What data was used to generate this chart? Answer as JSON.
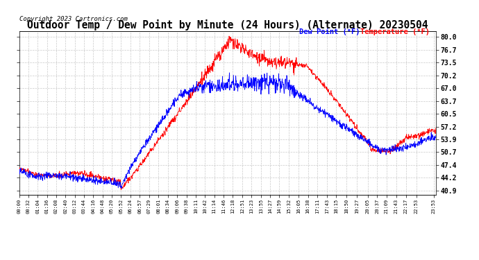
{
  "title": "Outdoor Temp / Dew Point by Minute (24 Hours) (Alternate) 20230504",
  "copyright": "Copyright 2023 Cartronics.com",
  "legend_dew": "Dew Point (°F)",
  "legend_temp": "Temperature (°F)",
  "dew_color": "#0000FF",
  "temp_color": "#FF0000",
  "background_color": "#FFFFFF",
  "grid_color": "#BBBBBB",
  "title_fontsize": 10.5,
  "copyright_fontsize": 6.5,
  "legend_fontsize": 7.5,
  "yticks": [
    40.9,
    44.2,
    47.4,
    50.7,
    53.9,
    57.2,
    60.5,
    63.7,
    67.0,
    70.2,
    73.5,
    76.7,
    80.0
  ],
  "ylim": [
    39.8,
    81.5
  ],
  "xtick_labels": [
    "00:00",
    "00:32",
    "01:04",
    "01:36",
    "02:08",
    "02:40",
    "03:12",
    "03:44",
    "04:16",
    "04:48",
    "05:20",
    "05:52",
    "06:24",
    "06:57",
    "07:29",
    "08:01",
    "08:34",
    "09:06",
    "09:38",
    "10:11",
    "10:42",
    "11:14",
    "11:46",
    "12:18",
    "12:51",
    "13:23",
    "13:55",
    "14:27",
    "14:59",
    "15:32",
    "16:05",
    "16:38",
    "17:11",
    "17:43",
    "18:15",
    "18:50",
    "19:27",
    "20:05",
    "20:37",
    "21:09",
    "21:43",
    "22:17",
    "22:53",
    "23:53"
  ]
}
